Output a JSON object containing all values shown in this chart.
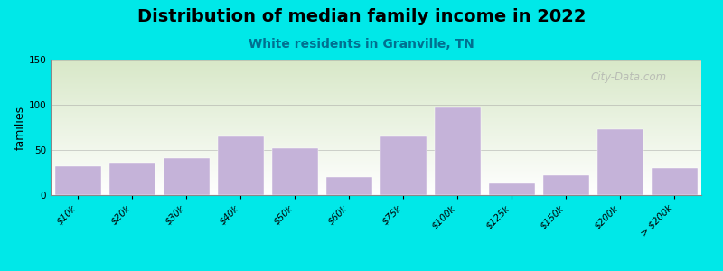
{
  "title": "Distribution of median family income in 2022",
  "subtitle": "White residents in Granville, TN",
  "ylabel": "families",
  "categories": [
    "$10k",
    "$20k",
    "$30k",
    "$40k",
    "$50k",
    "$60k",
    "$75k",
    "$100k",
    "$125k",
    "$150k",
    "$200k",
    "> $200k"
  ],
  "values": [
    32,
    36,
    41,
    65,
    52,
    20,
    65,
    97,
    13,
    22,
    73,
    30
  ],
  "bar_color": "#c5b3d9",
  "bg_outer": "#00e8e8",
  "bg_plot_top": "#d8e8c8",
  "bg_plot_bottom": "#ffffff",
  "grid_color": "#999999",
  "title_fontsize": 14,
  "subtitle_fontsize": 10,
  "ylabel_fontsize": 9,
  "tick_fontsize": 7.5,
  "ylim": [
    0,
    150
  ],
  "yticks": [
    0,
    50,
    100,
    150
  ],
  "watermark": "City-Data.com"
}
